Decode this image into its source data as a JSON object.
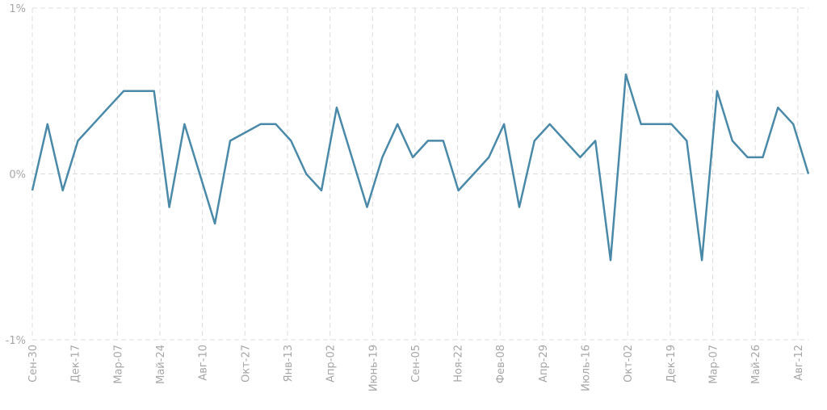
{
  "colors": {
    "series": "#4a8aa8",
    "grid": "#dcdcdc",
    "tick_text": "#a6a6a6"
  },
  "chart_data": {
    "type": "line",
    "title": "",
    "xlabel": "",
    "ylabel": "",
    "ylim": [
      -1,
      1
    ],
    "yticks": [
      {
        "value": 1,
        "label": "1%"
      },
      {
        "value": 0,
        "label": "0%"
      },
      {
        "value": -1,
        "label": "-1%"
      }
    ],
    "xtick_labels": [
      "Сен-30",
      "Дек-17",
      "Мар-07",
      "Май-24",
      "Авг-10",
      "Окт-27",
      "Янв-13",
      "Апр-02",
      "Июнь-19",
      "Сен-05",
      "Ноя-22",
      "Фев-08",
      "Апр-29",
      "Июль-16",
      "Окт-02",
      "Дек-19",
      "Мар-07",
      "Май-26",
      "Авг-12"
    ],
    "grid": true,
    "legend": "none",
    "series": [
      {
        "values": [
          -0.1,
          0.3,
          -0.1,
          0.2,
          0.3,
          0.4,
          0.5,
          0.5,
          0.5,
          -0.2,
          0.3,
          0,
          -0.3,
          0.2,
          0.25,
          0.3,
          0.3,
          0.2,
          0,
          -0.1,
          0.4,
          0.1,
          -0.2,
          0.1,
          0.3,
          0.1,
          0.2,
          0.2,
          -0.1,
          0,
          0.1,
          0.3,
          -0.2,
          0.2,
          0.3,
          0.2,
          0.1,
          0.2,
          -0.52,
          0.6,
          0.3,
          0.3,
          0.3,
          0.2,
          -0.52,
          0.5,
          0.2,
          0.1,
          0.1,
          0.4,
          0.3,
          0
        ]
      }
    ]
  }
}
